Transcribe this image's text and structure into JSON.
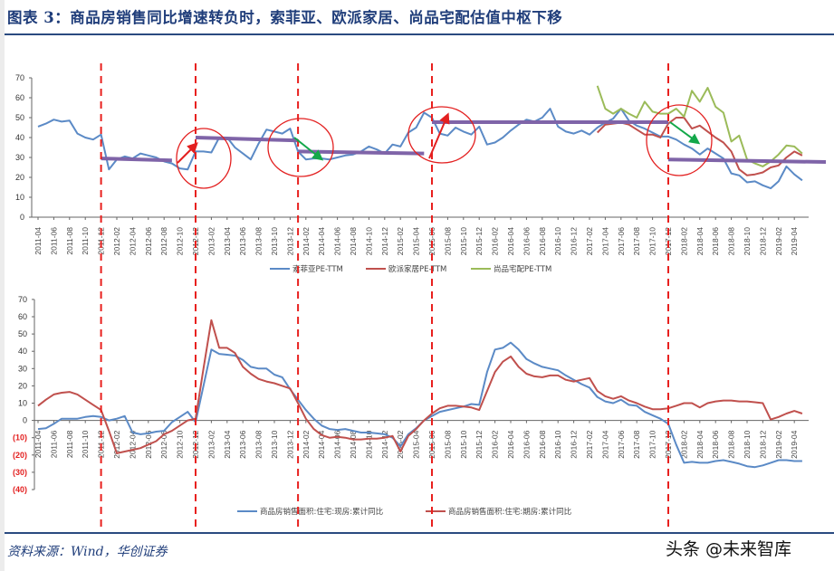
{
  "title": "图表 3：商品房销售同比增速转负时，索菲亚、欧派家居、尚品宅配估值中枢下移",
  "source": "资料来源：Wind，华创证券",
  "watermark": "头条 @未来智库",
  "colors": {
    "blue": "#5b8ac6",
    "red": "#c0504d",
    "green": "#9bbb59",
    "purple": "#7f64a8",
    "turning": "#e8201e",
    "title": "#1f3d7a"
  },
  "chart_data": [
    {
      "type": "line",
      "title": "",
      "ylim": [
        0,
        70
      ],
      "yticks": [
        0,
        10,
        20,
        30,
        40,
        50,
        60,
        70
      ],
      "x": [
        "2011-04",
        "2011-05",
        "2011-06",
        "2011-07",
        "2011-08",
        "2011-09",
        "2011-10",
        "2011-11",
        "2011-12",
        "2012-01",
        "2012-02",
        "2012-03",
        "2012-04",
        "2012-05",
        "2012-06",
        "2012-07",
        "2012-08",
        "2012-09",
        "2012-10",
        "2012-11",
        "2012-12",
        "2013-01",
        "2013-02",
        "2013-03",
        "2013-04",
        "2013-05",
        "2013-06",
        "2013-07",
        "2013-08",
        "2013-09",
        "2013-10",
        "2013-11",
        "2013-12",
        "2014-01",
        "2014-02",
        "2014-03",
        "2014-04",
        "2014-05",
        "2014-06",
        "2014-07",
        "2014-08",
        "2014-09",
        "2014-10",
        "2014-11",
        "2014-12",
        "2015-01",
        "2015-02",
        "2015-03",
        "2015-04",
        "2015-05",
        "2015-06",
        "2015-07",
        "2015-08",
        "2015-09",
        "2015-10",
        "2015-11",
        "2015-12",
        "2016-01",
        "2016-02",
        "2016-03",
        "2016-04",
        "2016-05",
        "2016-06",
        "2016-07",
        "2016-08",
        "2016-09",
        "2016-10",
        "2016-11",
        "2016-12",
        "2017-01",
        "2017-02",
        "2017-03",
        "2017-04",
        "2017-05",
        "2017-06",
        "2017-07",
        "2017-08",
        "2017-09",
        "2017-10",
        "2017-11",
        "2017-12",
        "2018-01",
        "2018-02",
        "2018-03",
        "2018-04",
        "2018-05",
        "2018-06",
        "2018-07",
        "2018-08",
        "2018-09",
        "2018-10",
        "2018-11",
        "2018-12",
        "2019-01",
        "2019-02",
        "2019-03",
        "2019-04",
        "2019-05"
      ],
      "legend_position": "bottom",
      "series": [
        {
          "name": "索菲亚PE-TTM",
          "color": "#5b8ac6",
          "values": [
            45.5,
            47,
            49,
            48,
            48.5,
            42,
            40,
            39,
            41.5,
            24,
            29,
            30.5,
            29.5,
            32,
            31,
            30,
            28,
            27,
            24.5,
            24,
            33,
            33,
            32.5,
            40,
            40,
            35,
            32,
            29,
            37,
            44,
            43,
            42,
            44.5,
            33,
            29,
            29.5,
            29.5,
            29,
            30,
            31,
            31.5,
            33,
            35.5,
            34,
            32,
            36.5,
            35.5,
            42.5,
            45,
            52.5,
            50,
            42,
            41,
            45,
            43,
            41.5,
            45.5,
            36.5,
            37.5,
            40,
            43.5,
            46.5,
            49,
            48,
            50,
            54.5,
            45.5,
            43,
            42,
            43.5,
            41.5,
            45,
            47.5,
            49.5,
            54.5,
            48.5,
            46,
            44.5,
            42.5,
            40.5,
            40.5,
            39,
            36.5,
            34.5,
            31.5,
            34.5,
            32,
            29.5,
            22,
            21,
            17.5,
            18,
            16,
            14.5,
            18,
            25.5,
            21.5,
            18.5
          ]
        },
        {
          "name": "欧派家居PE-TTM",
          "color": "#c0504d",
          "values": [
            null,
            null,
            null,
            null,
            null,
            null,
            null,
            null,
            null,
            null,
            null,
            null,
            null,
            null,
            null,
            null,
            null,
            null,
            null,
            null,
            null,
            null,
            null,
            null,
            null,
            null,
            null,
            null,
            null,
            null,
            null,
            null,
            null,
            null,
            null,
            null,
            null,
            null,
            null,
            null,
            null,
            null,
            null,
            null,
            null,
            null,
            null,
            null,
            null,
            null,
            null,
            null,
            null,
            null,
            null,
            null,
            null,
            null,
            null,
            null,
            null,
            null,
            null,
            null,
            null,
            null,
            null,
            null,
            null,
            null,
            null,
            42.5,
            46.5,
            47,
            47.5,
            46.5,
            44,
            41.5,
            41.5,
            40,
            47,
            50,
            50,
            44.5,
            46,
            43,
            40,
            37.5,
            33,
            24,
            21,
            21.5,
            22.5,
            25,
            26,
            30,
            33,
            31
          ]
        },
        {
          "name": "尚品宅配PE-TTM",
          "color": "#9bbb59",
          "values": [
            null,
            null,
            null,
            null,
            null,
            null,
            null,
            null,
            null,
            null,
            null,
            null,
            null,
            null,
            null,
            null,
            null,
            null,
            null,
            null,
            null,
            null,
            null,
            null,
            null,
            null,
            null,
            null,
            null,
            null,
            null,
            null,
            null,
            null,
            null,
            null,
            null,
            null,
            null,
            null,
            null,
            null,
            null,
            null,
            null,
            null,
            null,
            null,
            null,
            null,
            null,
            null,
            null,
            null,
            null,
            null,
            null,
            null,
            null,
            null,
            null,
            null,
            null,
            null,
            null,
            null,
            null,
            null,
            null,
            null,
            null,
            66,
            54.5,
            52,
            54.5,
            52,
            50,
            58,
            53,
            52,
            52,
            54.5,
            50.5,
            63.5,
            58,
            65,
            55.5,
            52.5,
            38,
            41,
            29,
            27,
            25.5,
            28,
            31.5,
            36,
            35.5,
            32
          ]
        }
      ],
      "annotations": {
        "turning_points": [
          "2011-12",
          "2012-12",
          "2014-01",
          "2015-06",
          "2017-12"
        ],
        "valuation_centers": [
          {
            "from": "2011-12",
            "to": "2012-09",
            "y": [
              29.5,
              28.5
            ]
          },
          {
            "from": "2012-12",
            "to": "2014-01",
            "y": [
              40,
              38.5
            ]
          },
          {
            "from": "2014-01",
            "to": "2015-05",
            "y": [
              33,
              32
            ]
          },
          {
            "from": "2015-06",
            "to": "2017-12",
            "y": [
              47.7,
              47.7
            ]
          },
          {
            "from": "2017-12",
            "to": "2019-08",
            "y": [
              29,
              27.7
            ]
          }
        ]
      }
    },
    {
      "type": "line",
      "title": "",
      "ylim": [
        -40,
        70
      ],
      "yticks": [
        -40,
        -30,
        -20,
        -10,
        0,
        10,
        20,
        30,
        40,
        50,
        60,
        70
      ],
      "legend_position": "bottom",
      "series": [
        {
          "name": "商品房销售面积:住宅:现房:累计同比",
          "color": "#5b8ac6",
          "values": [
            -5,
            -4.5,
            -2,
            1,
            1,
            1,
            2,
            2.5,
            2,
            0,
            1,
            2.5,
            -7,
            -8,
            -7.5,
            -6.5,
            -6,
            -1,
            2,
            5,
            -1,
            20,
            41,
            38.5,
            38,
            37.5,
            35,
            31,
            30,
            30,
            26.5,
            25,
            18,
            12,
            6,
            1,
            -3,
            -5,
            -5.5,
            -5,
            -6,
            -7,
            -7,
            -7.5,
            -8,
            -10,
            -15,
            -8,
            -4.5,
            0,
            2.5,
            5,
            6,
            7,
            8,
            9.5,
            9,
            28,
            41,
            42,
            45,
            41,
            35.5,
            33,
            31,
            30,
            29,
            26,
            23.5,
            21,
            19,
            13.5,
            11,
            10,
            12,
            9,
            8.5,
            5,
            3,
            1,
            -2,
            -14,
            -24.5,
            -24,
            -24.5,
            -24.5,
            -23.5,
            -23,
            -24,
            -25,
            -26.5,
            -27,
            -26,
            -24.5,
            -23,
            -23,
            -23.5,
            -23.5
          ]
        },
        {
          "name": "商品房销售面积:住宅:期房:累计同比",
          "color": "#c0504d",
          "values": [
            8.5,
            12,
            15,
            16,
            16.5,
            15,
            12,
            9,
            6,
            -6,
            -19,
            -18,
            -17,
            -16,
            -14,
            -12,
            -8,
            -6,
            -3,
            0,
            1,
            30,
            58,
            42,
            42,
            39,
            31,
            27,
            24,
            22.5,
            21.5,
            20,
            18.5,
            10,
            1,
            -5,
            -8.5,
            -10,
            -9.5,
            -10,
            -11,
            -11,
            -10.5,
            -10.5,
            -10,
            -9,
            -18,
            -9,
            -5,
            0,
            4,
            7,
            8.5,
            8.5,
            8,
            7.5,
            6,
            17,
            28,
            34,
            37,
            31,
            27,
            25.5,
            25,
            26,
            26,
            23.5,
            22.5,
            23.5,
            24.5,
            17,
            14,
            12.5,
            14,
            11.5,
            10,
            8,
            6.5,
            6.5,
            7,
            8.5,
            10,
            10,
            7.5,
            10,
            11,
            11.5,
            11.5,
            11,
            11,
            10.5,
            10,
            0.5,
            2,
            4,
            5.5,
            4
          ]
        }
      ]
    }
  ]
}
